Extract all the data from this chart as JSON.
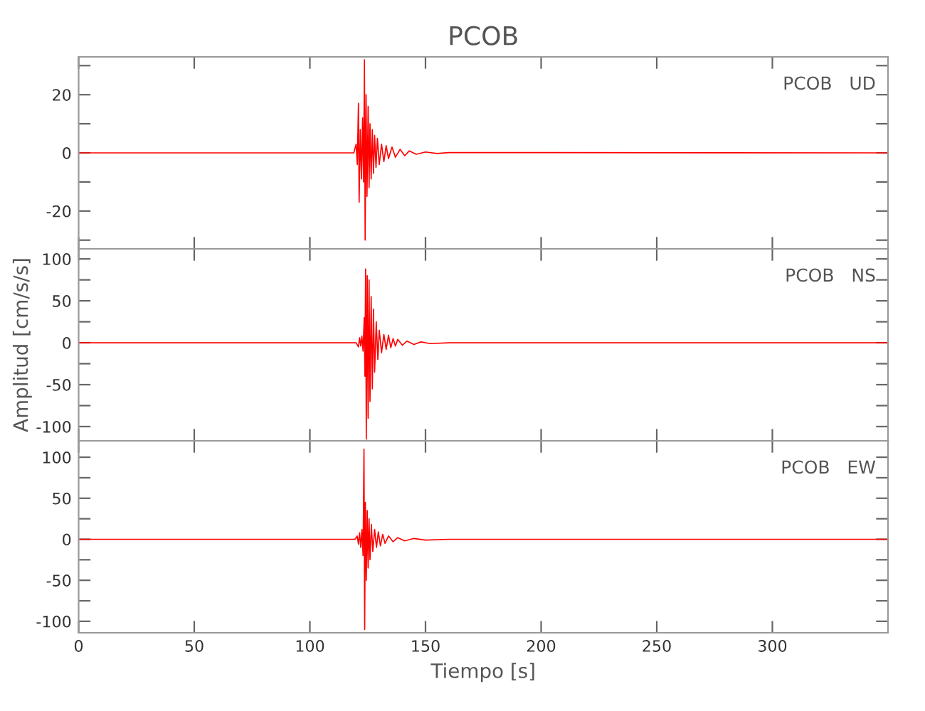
{
  "chart_data": [
    {
      "type": "line",
      "title": "PCOB",
      "annotations": [
        "PCOB   UD"
      ],
      "tick_labels": "y",
      "grid": false,
      "legend": false,
      "xlim": [
        0,
        350
      ],
      "xticks": [
        {
          "value": 0,
          "label": null
        },
        {
          "value": 50,
          "label": null
        },
        {
          "value": 100,
          "label": null
        },
        {
          "value": 150,
          "label": null
        },
        {
          "value": 200,
          "label": null
        },
        {
          "value": 250,
          "label": null
        },
        {
          "value": 300,
          "label": null
        }
      ],
      "ylim": [
        -33,
        33
      ],
      "yticks": [
        {
          "value": -30,
          "label": null
        },
        -20,
        {
          "value": -10,
          "label": null
        },
        0,
        {
          "value": 10,
          "label": null
        },
        20,
        {
          "value": 30,
          "label": null
        }
      ],
      "series": [
        {
          "color": "#ff0000",
          "x": [
            0,
            119,
            120,
            120.5,
            121,
            121.3,
            121.8,
            122.3,
            122.8,
            123.2,
            123.6,
            123.9,
            124.3,
            124.7,
            125.2,
            125.6,
            126,
            126.5,
            127,
            127.5,
            128,
            128.6,
            129.2,
            130,
            131,
            132,
            133,
            134,
            135.5,
            137,
            139,
            141,
            143,
            146,
            150,
            155,
            160,
            350
          ],
          "values": [
            0,
            0,
            3,
            -4,
            17,
            -17,
            8,
            -9,
            12,
            -10,
            32,
            -30,
            20,
            -15,
            16,
            -12,
            10,
            -9,
            8,
            -7,
            6,
            -5,
            5,
            -4,
            3,
            -3,
            2.5,
            -2,
            2,
            -1.5,
            1.2,
            -1,
            0.7,
            -0.5,
            0.3,
            -0.2,
            0.1,
            0
          ]
        }
      ]
    },
    {
      "type": "line",
      "annotations": [
        "PCOB   NS"
      ],
      "ylabel": "Amplitud [cm/s/s]",
      "tick_labels": "y",
      "grid": false,
      "legend": false,
      "xlim": [
        0,
        350
      ],
      "xticks": [
        {
          "value": 0,
          "label": null
        },
        {
          "value": 50,
          "label": null
        },
        {
          "value": 100,
          "label": null
        },
        {
          "value": 150,
          "label": null
        },
        {
          "value": 200,
          "label": null
        },
        {
          "value": 250,
          "label": null
        },
        {
          "value": 300,
          "label": null
        }
      ],
      "ylim": [
        -117,
        112
      ],
      "yticks": [
        -100,
        {
          "value": -75,
          "label": null
        },
        -50,
        {
          "value": -25,
          "label": null
        },
        0,
        {
          "value": 25,
          "label": null
        },
        50,
        {
          "value": 75,
          "label": null
        },
        100
      ],
      "series": [
        {
          "color": "#ff0000",
          "x": [
            0,
            120,
            121,
            121.5,
            122,
            122.5,
            123,
            123.5,
            123.8,
            124.1,
            124.4,
            124.8,
            125.2,
            125.6,
            126,
            126.5,
            127,
            127.5,
            128,
            128.7,
            129.4,
            130,
            131,
            132,
            133,
            134,
            135,
            136,
            137,
            138,
            140,
            142,
            145,
            148,
            152,
            160,
            350
          ],
          "values": [
            0,
            0,
            -5,
            6,
            -4,
            8,
            -10,
            30,
            -40,
            88,
            -115,
            80,
            -90,
            75,
            -70,
            55,
            -55,
            40,
            -35,
            25,
            -20,
            15,
            -12,
            10,
            -8,
            9,
            -6,
            5,
            -4,
            4,
            -3,
            2,
            -2,
            1,
            -1,
            0,
            0
          ]
        }
      ]
    },
    {
      "type": "line",
      "annotations": [
        "PCOB   EW"
      ],
      "xlabel": "Tiempo [s]",
      "grid": false,
      "legend": false,
      "xlim": [
        0,
        350
      ],
      "xticks": [
        0,
        50,
        100,
        150,
        200,
        250,
        300
      ],
      "ylim": [
        -114,
        120
      ],
      "yticks": [
        -100,
        {
          "value": -75,
          "label": null
        },
        -50,
        {
          "value": -25,
          "label": null
        },
        0,
        {
          "value": 25,
          "label": null
        },
        50,
        {
          "value": 75,
          "label": null
        },
        100
      ],
      "series": [
        {
          "color": "#ff0000",
          "x": [
            0,
            119.5,
            120.5,
            121,
            121.5,
            122,
            122.5,
            123,
            123.4,
            123.7,
            124,
            124.4,
            124.8,
            125.2,
            125.6,
            126,
            126.6,
            127.2,
            128,
            128.8,
            129.6,
            130.5,
            131.5,
            132.5,
            134,
            136,
            138,
            141,
            145,
            150,
            160,
            350
          ],
          "values": [
            0,
            0,
            4,
            -6,
            8,
            -10,
            12,
            -20,
            110,
            -110,
            45,
            -50,
            35,
            -35,
            25,
            -25,
            18,
            -15,
            12,
            -10,
            9,
            -8,
            6,
            -5,
            4,
            -3,
            2,
            -2,
            1,
            -1,
            0,
            0
          ]
        }
      ]
    }
  ]
}
